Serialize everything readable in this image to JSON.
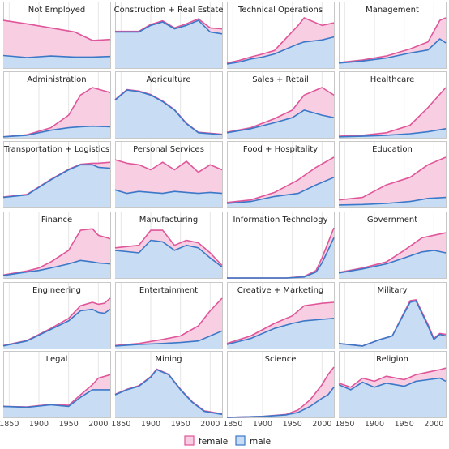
{
  "colors": {
    "female_fill": "#f8cfe2",
    "female_line": "#e0569a",
    "male_fill": "#c8ddf4",
    "male_line": "#3b78c8",
    "grid": "#e6e6e6",
    "frame": "#bbbbbb"
  },
  "legend": {
    "female_label": "female",
    "male_label": "male",
    "position": "bottom-center"
  },
  "chart_data": {
    "type": "area",
    "layout": "small-multiples 4x6",
    "x_ticks": [
      1850,
      1900,
      1950,
      2000
    ],
    "xlim": [
      1840,
      2020
    ],
    "ylim": [
      0,
      1
    ],
    "grid": "vertical",
    "panels": [
      {
        "title": "Not Employed",
        "x": [
          1840,
          1880,
          1920,
          1960,
          1990,
          2020
        ],
        "male": [
          0.25,
          0.21,
          0.24,
          0.22,
          0.22,
          0.23
        ],
        "total": [
          0.95,
          0.88,
          0.8,
          0.72,
          0.55,
          0.57
        ]
      },
      {
        "title": "Construction + Real Estate",
        "x": [
          1840,
          1880,
          1900,
          1920,
          1940,
          1960,
          1980,
          2000,
          2020
        ],
        "male": [
          0.72,
          0.72,
          0.85,
          0.92,
          0.78,
          0.85,
          0.95,
          0.72,
          0.68
        ],
        "total": [
          0.73,
          0.73,
          0.87,
          0.94,
          0.8,
          0.88,
          0.98,
          0.8,
          0.78
        ]
      },
      {
        "title": "Technical Operations",
        "x": [
          1840,
          1860,
          1880,
          1900,
          1920,
          1940,
          1960,
          1970,
          2000,
          2020
        ],
        "male": [
          0.08,
          0.12,
          0.18,
          0.22,
          0.28,
          0.38,
          0.48,
          0.52,
          0.56,
          0.62
        ],
        "total": [
          0.1,
          0.15,
          0.22,
          0.28,
          0.35,
          0.6,
          0.85,
          1.0,
          0.85,
          0.9
        ]
      },
      {
        "title": "Management",
        "x": [
          1840,
          1880,
          1920,
          1960,
          1990,
          2010,
          2020
        ],
        "male": [
          0.1,
          0.14,
          0.2,
          0.3,
          0.36,
          0.58,
          0.5
        ],
        "total": [
          0.11,
          0.16,
          0.24,
          0.38,
          0.52,
          0.95,
          1.0
        ]
      },
      {
        "title": "Administration",
        "x": [
          1840,
          1880,
          1920,
          1950,
          1970,
          1990,
          2020
        ],
        "male": [
          0.02,
          0.05,
          0.15,
          0.2,
          0.22,
          0.23,
          0.22
        ],
        "total": [
          0.02,
          0.06,
          0.2,
          0.45,
          0.85,
          1.0,
          0.9
        ]
      },
      {
        "title": "Agriculture",
        "x": [
          1840,
          1860,
          1880,
          1900,
          1920,
          1940,
          1960,
          1980,
          2000,
          2020
        ],
        "male": [
          0.75,
          0.95,
          0.92,
          0.85,
          0.72,
          0.55,
          0.28,
          0.1,
          0.08,
          0.06
        ],
        "total": [
          0.76,
          0.96,
          0.93,
          0.86,
          0.73,
          0.56,
          0.29,
          0.11,
          0.09,
          0.07
        ]
      },
      {
        "title": "Sales + Retail",
        "x": [
          1840,
          1880,
          1920,
          1950,
          1970,
          2000,
          2020
        ],
        "male": [
          0.1,
          0.18,
          0.3,
          0.4,
          0.55,
          0.45,
          0.4
        ],
        "total": [
          0.11,
          0.2,
          0.38,
          0.55,
          0.85,
          1.0,
          0.85
        ]
      },
      {
        "title": "Healthcare",
        "x": [
          1840,
          1880,
          1920,
          1960,
          1990,
          2020
        ],
        "male": [
          0.02,
          0.03,
          0.05,
          0.08,
          0.12,
          0.18
        ],
        "total": [
          0.03,
          0.05,
          0.1,
          0.25,
          0.6,
          1.0
        ]
      },
      {
        "title": "Transportation + Logistics",
        "x": [
          1840,
          1880,
          1920,
          1950,
          1970,
          1990,
          2000,
          2020
        ],
        "male": [
          0.2,
          0.25,
          0.55,
          0.75,
          0.85,
          0.85,
          0.8,
          0.78
        ],
        "total": [
          0.21,
          0.26,
          0.56,
          0.76,
          0.86,
          0.88,
          0.88,
          0.9
        ]
      },
      {
        "title": "Personal Services",
        "x": [
          1840,
          1860,
          1880,
          1900,
          1920,
          1940,
          1960,
          1980,
          2000,
          2020
        ],
        "male": [
          0.35,
          0.28,
          0.32,
          0.3,
          0.28,
          0.32,
          0.3,
          0.28,
          0.3,
          0.28
        ],
        "total": [
          0.95,
          0.88,
          0.85,
          0.75,
          0.9,
          0.75,
          0.92,
          0.7,
          0.85,
          0.75
        ]
      },
      {
        "title": "Food + Hospitality",
        "x": [
          1840,
          1880,
          1920,
          1960,
          1990,
          2020
        ],
        "male": [
          0.08,
          0.12,
          0.22,
          0.28,
          0.45,
          0.6
        ],
        "total": [
          0.1,
          0.15,
          0.3,
          0.55,
          0.8,
          1.0
        ]
      },
      {
        "title": "Education",
        "x": [
          1840,
          1880,
          1920,
          1960,
          1990,
          2020
        ],
        "male": [
          0.05,
          0.06,
          0.08,
          0.12,
          0.18,
          0.2
        ],
        "total": [
          0.15,
          0.2,
          0.45,
          0.6,
          0.85,
          1.0
        ]
      },
      {
        "title": "Finance",
        "x": [
          1840,
          1880,
          1900,
          1920,
          1950,
          1970,
          1990,
          2000,
          2020
        ],
        "male": [
          0.05,
          0.12,
          0.15,
          0.2,
          0.28,
          0.35,
          0.32,
          0.3,
          0.28
        ],
        "total": [
          0.06,
          0.14,
          0.2,
          0.32,
          0.55,
          0.95,
          0.98,
          0.85,
          0.78
        ]
      },
      {
        "title": "Manufacturing",
        "x": [
          1840,
          1880,
          1900,
          1920,
          1940,
          1960,
          1980,
          2000,
          2020
        ],
        "male": [
          0.55,
          0.5,
          0.75,
          0.72,
          0.55,
          0.65,
          0.6,
          0.4,
          0.22
        ],
        "total": [
          0.6,
          0.65,
          0.95,
          0.95,
          0.65,
          0.75,
          0.7,
          0.5,
          0.25
        ]
      },
      {
        "title": "Information Technology",
        "x": [
          1840,
          1940,
          1970,
          1990,
          2000,
          2010,
          2020
        ],
        "male": [
          0.0,
          0.0,
          0.02,
          0.12,
          0.3,
          0.55,
          0.8
        ],
        "total": [
          0.0,
          0.0,
          0.03,
          0.15,
          0.4,
          0.7,
          1.0
        ]
      },
      {
        "title": "Government",
        "x": [
          1840,
          1880,
          1920,
          1950,
          1980,
          2000,
          2020
        ],
        "male": [
          0.1,
          0.18,
          0.28,
          0.4,
          0.52,
          0.55,
          0.5
        ],
        "total": [
          0.11,
          0.2,
          0.32,
          0.55,
          0.8,
          0.85,
          0.9
        ]
      },
      {
        "title": "Engineering",
        "x": [
          1840,
          1880,
          1920,
          1950,
          1970,
          1990,
          2000,
          2010,
          2020
        ],
        "male": [
          0.05,
          0.15,
          0.38,
          0.55,
          0.75,
          0.78,
          0.72,
          0.7,
          0.78
        ],
        "total": [
          0.06,
          0.16,
          0.4,
          0.6,
          0.85,
          0.92,
          0.88,
          0.9,
          1.0
        ]
      },
      {
        "title": "Entertainment",
        "x": [
          1840,
          1880,
          1920,
          1950,
          1980,
          2000,
          2020
        ],
        "male": [
          0.05,
          0.08,
          0.1,
          0.12,
          0.15,
          0.25,
          0.35
        ],
        "total": [
          0.06,
          0.1,
          0.18,
          0.25,
          0.45,
          0.75,
          1.0
        ]
      },
      {
        "title": "Creative + Marketing",
        "x": [
          1840,
          1880,
          1920,
          1950,
          1970,
          2000,
          2020
        ],
        "male": [
          0.08,
          0.2,
          0.4,
          0.5,
          0.55,
          0.58,
          0.6
        ],
        "total": [
          0.1,
          0.25,
          0.5,
          0.65,
          0.85,
          0.9,
          0.92
        ]
      },
      {
        "title": "Military",
        "x": [
          1840,
          1880,
          1910,
          1930,
          1950,
          1960,
          1970,
          1990,
          2000,
          2010,
          2020
        ],
        "male": [
          0.1,
          0.05,
          0.18,
          0.25,
          0.7,
          0.92,
          0.95,
          0.45,
          0.18,
          0.28,
          0.25
        ],
        "total": [
          0.1,
          0.05,
          0.18,
          0.25,
          0.72,
          0.95,
          0.97,
          0.48,
          0.2,
          0.3,
          0.28
        ]
      },
      {
        "title": "Legal",
        "x": [
          1840,
          1880,
          1920,
          1950,
          1970,
          1990,
          2000,
          2020
        ],
        "male": [
          0.22,
          0.2,
          0.25,
          0.22,
          0.4,
          0.55,
          0.55,
          0.55
        ],
        "total": [
          0.22,
          0.21,
          0.26,
          0.24,
          0.45,
          0.65,
          0.78,
          0.85
        ]
      },
      {
        "title": "Mining",
        "x": [
          1840,
          1860,
          1880,
          1900,
          1910,
          1930,
          1950,
          1970,
          1990,
          2020
        ],
        "male": [
          0.45,
          0.55,
          0.62,
          0.8,
          0.95,
          0.85,
          0.55,
          0.3,
          0.12,
          0.06
        ],
        "total": [
          0.46,
          0.56,
          0.63,
          0.81,
          0.96,
          0.86,
          0.56,
          0.31,
          0.13,
          0.07
        ]
      },
      {
        "title": "Science",
        "x": [
          1840,
          1900,
          1940,
          1960,
          1980,
          2000,
          2010,
          2020
        ],
        "male": [
          0.0,
          0.02,
          0.05,
          0.1,
          0.22,
          0.38,
          0.45,
          0.6
        ],
        "total": [
          0.0,
          0.02,
          0.06,
          0.15,
          0.35,
          0.65,
          0.85,
          1.0
        ]
      },
      {
        "title": "Religion",
        "x": [
          1840,
          1860,
          1880,
          1900,
          1920,
          1950,
          1970,
          1990,
          2010,
          2020
        ],
        "male": [
          0.65,
          0.55,
          0.7,
          0.6,
          0.68,
          0.62,
          0.72,
          0.75,
          0.78,
          0.72
        ],
        "total": [
          0.68,
          0.6,
          0.78,
          0.72,
          0.82,
          0.75,
          0.85,
          0.9,
          0.95,
          0.98
        ]
      }
    ]
  }
}
